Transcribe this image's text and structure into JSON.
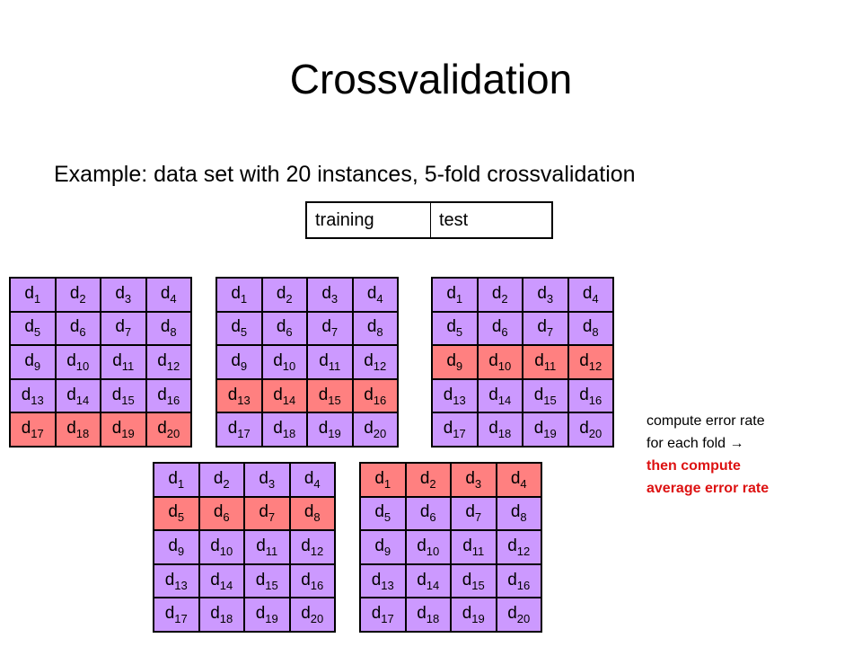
{
  "slide": {
    "title": "Crossvalidation",
    "subtitle": "Example: data set with 20 instances, 5-fold crossvalidation"
  },
  "legend": {
    "training_label": "training",
    "test_label": "test",
    "training_color": "#cc99ff",
    "test_color": "#ff8080"
  },
  "grid": {
    "rows": [
      [
        "1",
        "2",
        "3",
        "4"
      ],
      [
        "5",
        "6",
        "7",
        "8"
      ],
      [
        "9",
        "10",
        "11",
        "12"
      ],
      [
        "13",
        "14",
        "15",
        "16"
      ],
      [
        "17",
        "18",
        "19",
        "20"
      ]
    ],
    "prefix": "d"
  },
  "folds": [
    {
      "test_row": 5
    },
    {
      "test_row": 4
    },
    {
      "test_row": 3
    },
    {
      "test_row": 2
    },
    {
      "test_row": 1
    }
  ],
  "note": {
    "line1": "compute error rate",
    "line2_text": "for each fold",
    "line2_arrow": "→",
    "line3": "then compute",
    "line4": "average error rate"
  }
}
